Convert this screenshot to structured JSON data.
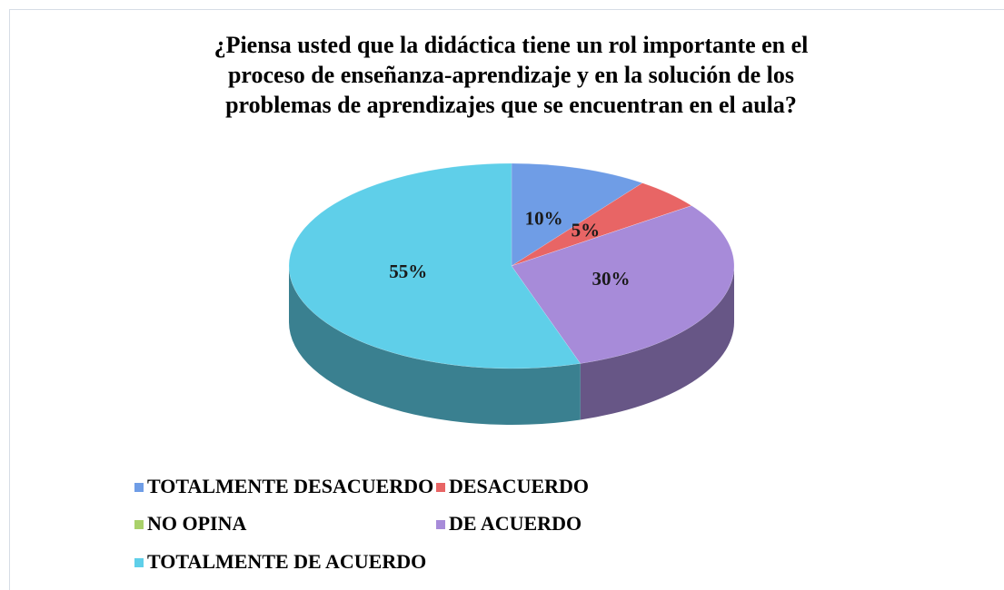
{
  "chart_data": {
    "type": "pie",
    "title": "¿Piensa usted que la didáctica tiene un rol importante en el proceso de enseñanza-aprendizaje y en la solución de los problemas de aprendizajes que se encuentran en el aula?",
    "categories": [
      "TOTALMENTE DESACUERDO",
      "DESACUERDO",
      "NO OPINA",
      "DE ACUERDO",
      "TOTALMENTE DE ACUERDO"
    ],
    "values": [
      10,
      5,
      0,
      30,
      55
    ],
    "value_labels": [
      "10%",
      "5%",
      null,
      "30%",
      "55%"
    ],
    "colors": [
      "#6f9de6",
      "#e86565",
      "#a9d16a",
      "#a78bd9",
      "#5fcfe9"
    ],
    "legend": "bottom"
  }
}
